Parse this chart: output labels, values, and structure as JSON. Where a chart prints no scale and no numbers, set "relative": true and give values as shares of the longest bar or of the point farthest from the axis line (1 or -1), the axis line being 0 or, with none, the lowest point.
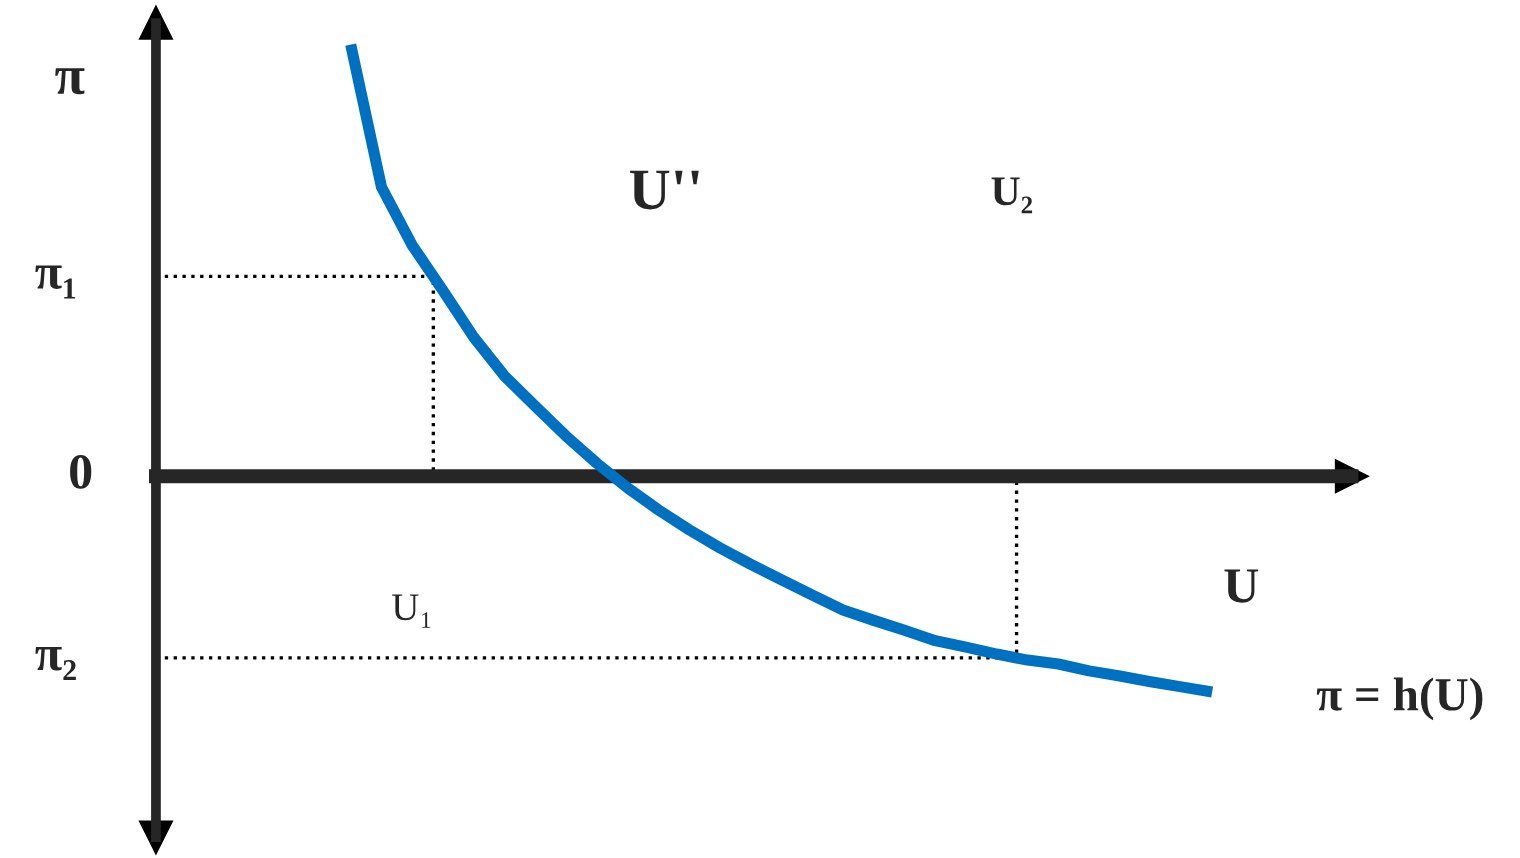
{
  "chart_data": {
    "type": "line",
    "xlabel": "U",
    "ylabel": "π",
    "relative": true,
    "marker": "none",
    "categories": [
      null,
      null,
      null,
      null,
      null,
      null,
      null,
      null,
      null,
      null,
      null,
      null,
      null,
      null,
      null,
      null,
      null,
      null,
      null,
      null,
      null,
      null,
      null,
      null,
      null,
      null,
      null,
      null,
      null
    ],
    "series": [
      {
        "color": "#0070c0",
        "values": [
          1.0,
          0.67,
          0.535,
          0.43,
          0.322,
          0.232,
          0.162,
          0.093,
          0.03,
          -0.027,
          -0.078,
          -0.124,
          -0.166,
          -0.204,
          -0.24,
          -0.275,
          -0.31,
          -0.334,
          -0.357,
          -0.381,
          -0.396,
          -0.412,
          -0.426,
          -0.435,
          -0.451,
          -0.463,
          -0.476,
          -0.488,
          -0.5
        ]
      }
    ],
    "ref_lines": [
      {
        "axis": "y",
        "value": 0.463,
        "label": "π₁",
        "color": "#000000",
        "line_style": "dotted"
      },
      {
        "axis": "y",
        "value": -0.421,
        "label": "π₂",
        "color": "#000000",
        "line_style": "dotted"
      }
    ],
    "annotations": [
      "0",
      "U₁",
      "U''",
      "U₂",
      "π = h(U)"
    ]
  }
}
